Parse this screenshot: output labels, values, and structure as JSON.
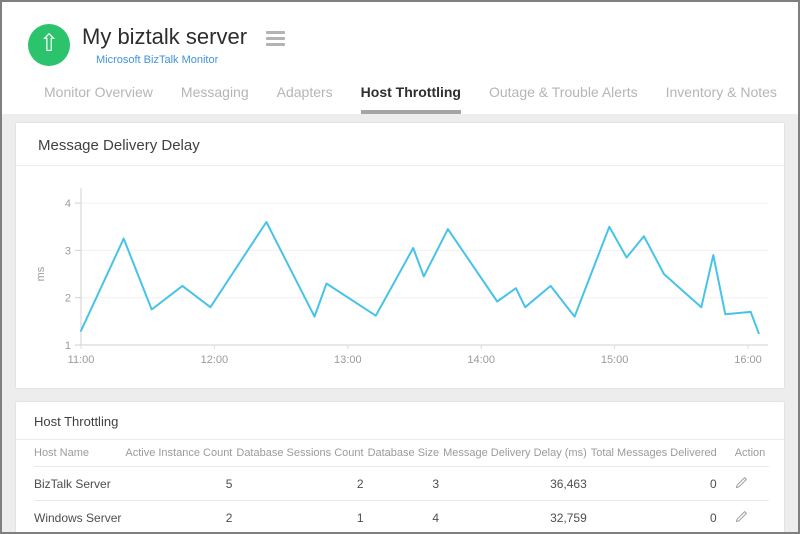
{
  "header": {
    "title": "My biztalk server",
    "subtitle_link": "Microsoft BizTalk Monitor",
    "status_icon": "up-arrow-icon",
    "status_color": "#2cc36d",
    "link_color": "#4293d8"
  },
  "tabs": [
    {
      "label": "Monitor Overview",
      "active": false
    },
    {
      "label": "Messaging",
      "active": false
    },
    {
      "label": "Adapters",
      "active": false
    },
    {
      "label": "Host Throttling",
      "active": true
    },
    {
      "label": "Outage & Trouble Alerts",
      "active": false
    },
    {
      "label": "Inventory & Notes",
      "active": false
    }
  ],
  "chart_panel": {
    "title": "Message Delivery Delay"
  },
  "chart_data": {
    "type": "line",
    "title": "Message Delivery Delay",
    "xlabel": "",
    "ylabel": "ms",
    "ylim": [
      1,
      4
    ],
    "yticks": [
      1,
      2,
      3,
      4
    ],
    "xtick_labels": [
      "11:00",
      "12:00",
      "13:00",
      "14:00",
      "15:00",
      "16:00"
    ],
    "xtick_hours": [
      0,
      1,
      2,
      3,
      4,
      5
    ],
    "grid": "horizontal",
    "legend": "none",
    "line_color": "#48c3e8",
    "series": [
      {
        "name": "Message Delivery Delay (ms)",
        "points": [
          [
            0.0,
            1.3
          ],
          [
            0.32,
            3.25
          ],
          [
            0.53,
            1.75
          ],
          [
            0.76,
            2.25
          ],
          [
            0.97,
            1.8
          ],
          [
            1.39,
            3.6
          ],
          [
            1.75,
            1.6
          ],
          [
            1.84,
            2.3
          ],
          [
            2.21,
            1.62
          ],
          [
            2.49,
            3.05
          ],
          [
            2.57,
            2.45
          ],
          [
            2.75,
            3.45
          ],
          [
            3.12,
            1.92
          ],
          [
            3.26,
            2.2
          ],
          [
            3.33,
            1.8
          ],
          [
            3.52,
            2.25
          ],
          [
            3.7,
            1.6
          ],
          [
            3.96,
            3.5
          ],
          [
            4.09,
            2.85
          ],
          [
            4.22,
            3.3
          ],
          [
            4.37,
            2.5
          ],
          [
            4.65,
            1.8
          ],
          [
            4.74,
            2.9
          ],
          [
            4.83,
            1.65
          ],
          [
            5.02,
            1.7
          ],
          [
            5.08,
            1.25
          ]
        ]
      }
    ]
  },
  "table_panel": {
    "title": "Host Throttling",
    "columns": [
      "Host Name",
      "Active Instance Count",
      "Database Sessions Count",
      "Database Size",
      "Message Delivery Delay (ms)",
      "Total Messages Delivered",
      "Action"
    ],
    "rows": [
      [
        "BizTalk Server",
        "5",
        "2",
        "3",
        "36,463",
        "0"
      ],
      [
        "Windows Server",
        "2",
        "1",
        "4",
        "32,759",
        "0"
      ]
    ],
    "action_icon": "pencil-icon"
  }
}
